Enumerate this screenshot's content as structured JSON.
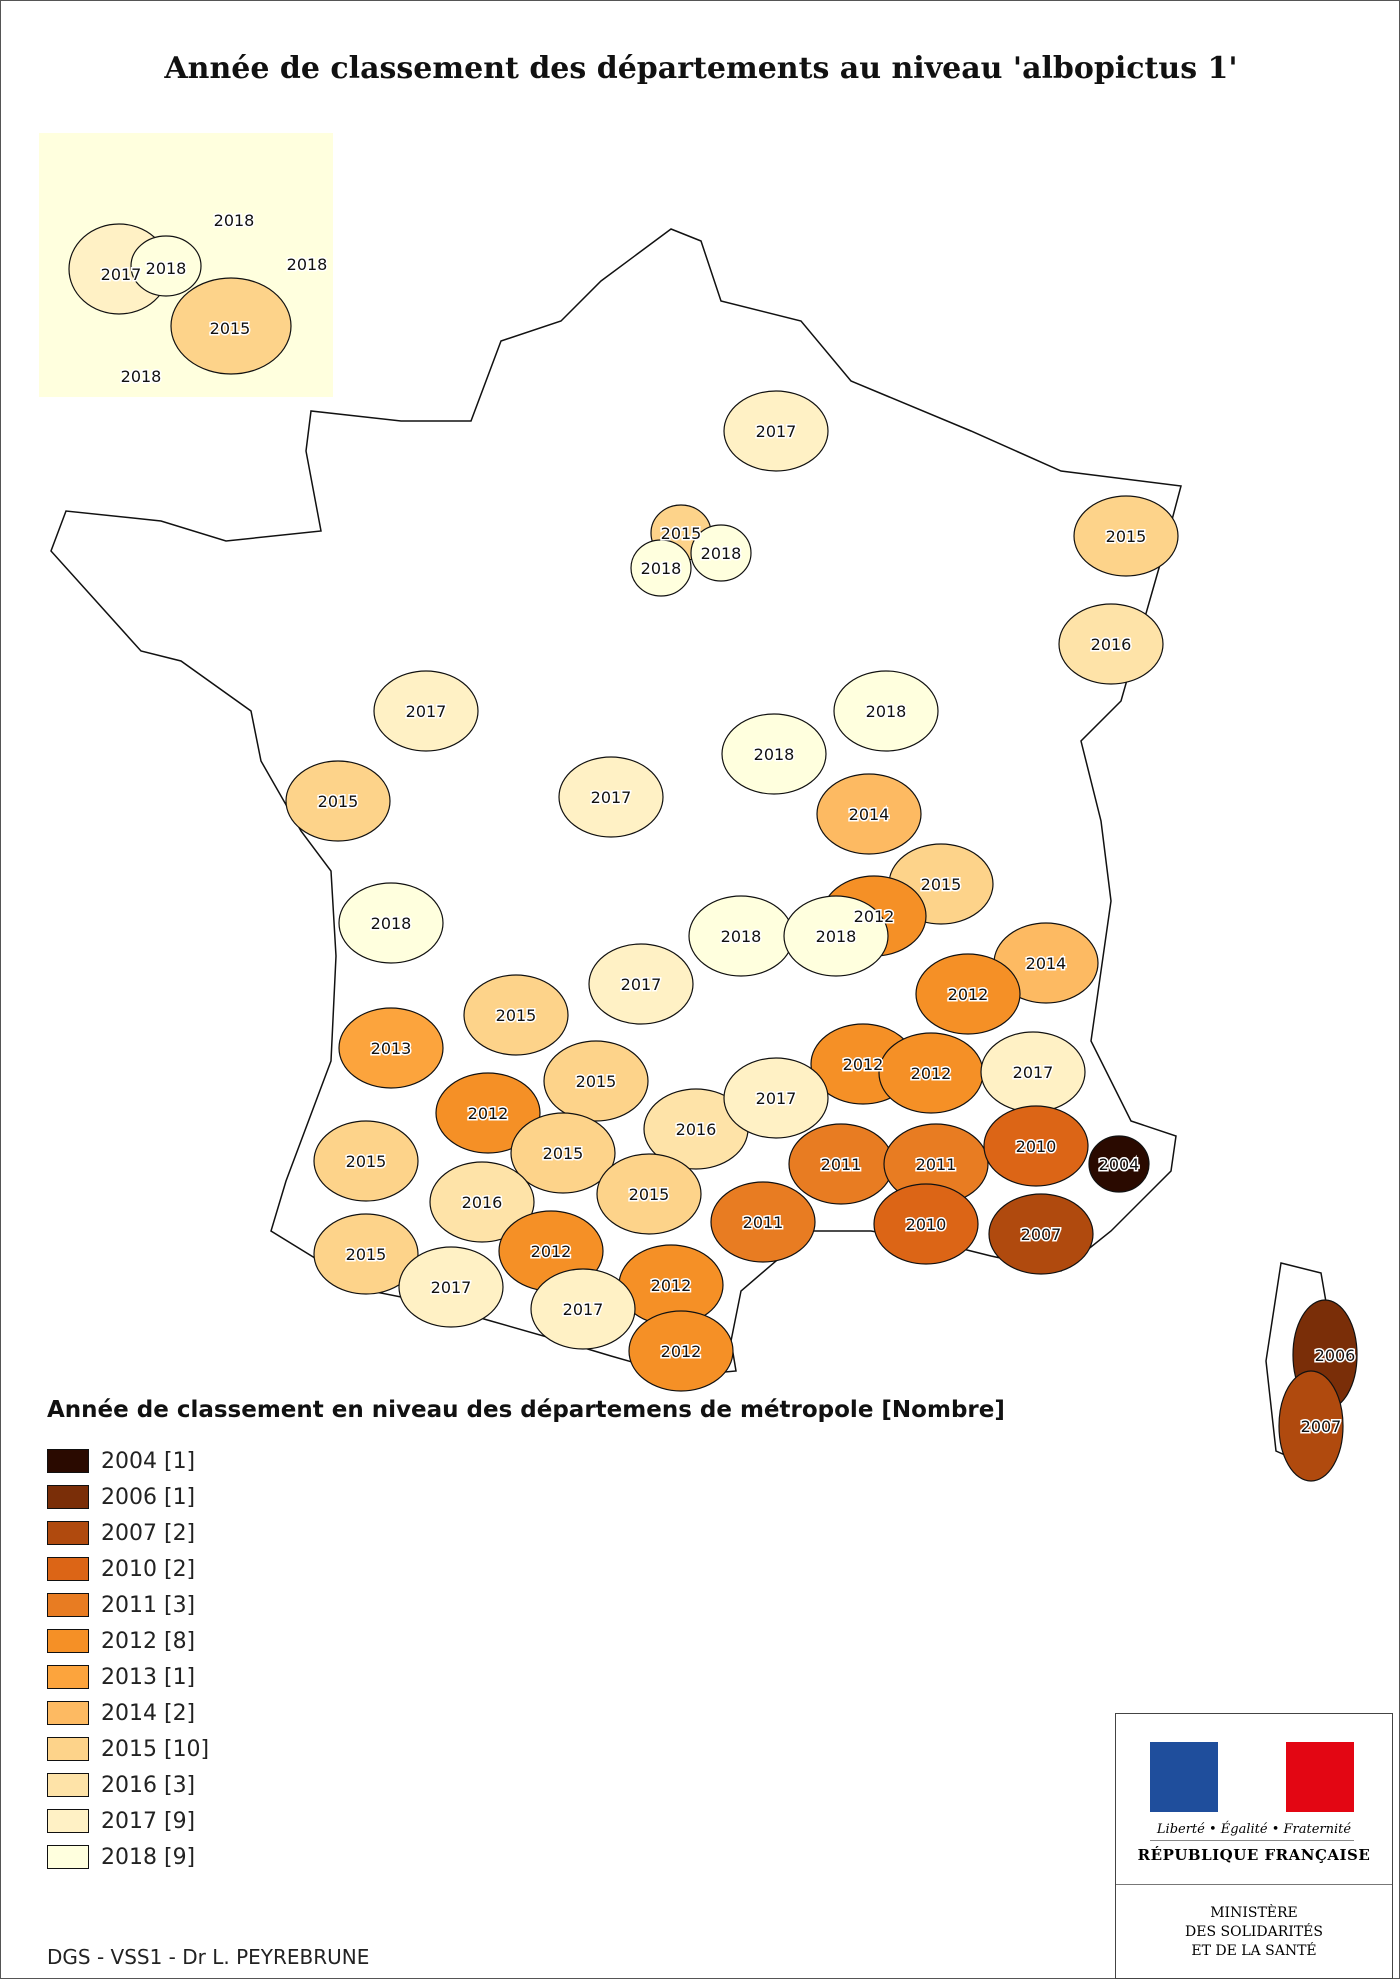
{
  "title": "Année de classement des départements au niveau 'albopictus 1'",
  "legend": {
    "title": "Année de classement en niveau des départemens de métropole [Nombre]",
    "items": [
      {
        "label": "2004 [1]",
        "year": 2004,
        "count": 1,
        "color": "#2a0a00"
      },
      {
        "label": "2006 [1]",
        "year": 2006,
        "count": 1,
        "color": "#7a2e08"
      },
      {
        "label": "2007 [2]",
        "year": 2007,
        "count": 2,
        "color": "#b04a0e"
      },
      {
        "label": "2010 [2]",
        "year": 2010,
        "count": 2,
        "color": "#dc6516"
      },
      {
        "label": "2011 [3]",
        "year": 2011,
        "count": 3,
        "color": "#e87c22"
      },
      {
        "label": "2012 [8]",
        "year": 2012,
        "count": 8,
        "color": "#f59026"
      },
      {
        "label": "2013 [1]",
        "year": 2013,
        "count": 1,
        "color": "#fca43d"
      },
      {
        "label": "2014 [2]",
        "year": 2014,
        "count": 2,
        "color": "#fdba62"
      },
      {
        "label": "2015 [10]",
        "year": 2015,
        "count": 10,
        "color": "#fdd38a"
      },
      {
        "label": "2016 [3]",
        "year": 2016,
        "count": 3,
        "color": "#fee3a8"
      },
      {
        "label": "2017 [9]",
        "year": 2017,
        "count": 9,
        "color": "#fff1c5"
      },
      {
        "label": "2018 [9]",
        "year": 2018,
        "count": 9,
        "color": "#ffffde"
      }
    ]
  },
  "inset_labels": [
    "2018",
    "2018",
    "2017",
    "2018",
    "2015",
    "2018"
  ],
  "department_labels": [
    "2017",
    "2015",
    "2015",
    "2018",
    "2018",
    "2016",
    "2017",
    "2018",
    "2018",
    "2015",
    "2017",
    "2014",
    "2015",
    "2012",
    "2018",
    "2018",
    "2018",
    "2014",
    "2012",
    "2017",
    "2015",
    "2013",
    "2012",
    "2012",
    "2015",
    "2017",
    "2016",
    "2017",
    "2012",
    "2015",
    "2011",
    "2011",
    "2010",
    "2004",
    "2015",
    "2016",
    "2015",
    "2011",
    "2010",
    "2007",
    "2012",
    "2015",
    "2017",
    "2012",
    "2017",
    "2012",
    "2006",
    "2007"
  ],
  "credit": "DGS - VSS1 - Dr L. PEYREBRUNE",
  "logo": {
    "motto": "Liberté • Égalité • Fraternité",
    "republic": "RÉPUBLIQUE FRANÇAISE",
    "ministry_lines": [
      "MINISTÈRE",
      "DES SOLIDARITÉS",
      "ET DE LA SANTÉ"
    ],
    "flag_colors": [
      "#1f4e9c",
      "#ffffff",
      "#e30613"
    ]
  }
}
